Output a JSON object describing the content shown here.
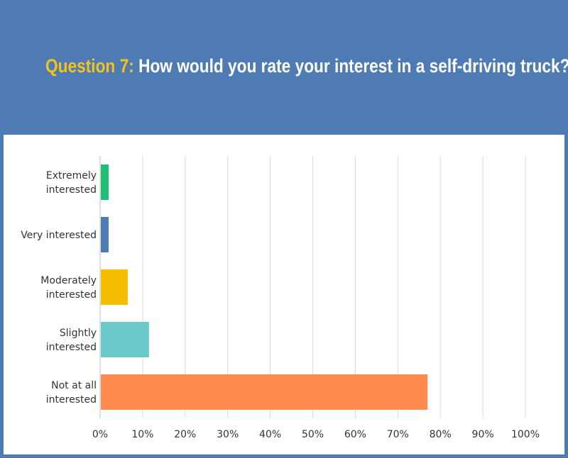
{
  "header": {
    "question_label": "Question 7:",
    "question_text": "How would you rate your interest in a self-driving truck?"
  },
  "colors": {
    "background": "#4f7bb5",
    "question_label": "#f5c11d",
    "grid": "#d9d9d9"
  },
  "chart_data": {
    "type": "bar",
    "orientation": "horizontal",
    "title": "How would you rate your interest in a self-driving truck?",
    "categories": [
      [
        "Extremely",
        "interested"
      ],
      [
        "Very interested"
      ],
      [
        "Moderately",
        "interested"
      ],
      [
        "Slightly",
        "interested"
      ],
      [
        "Not at all",
        "interested"
      ]
    ],
    "values": [
      2,
      2,
      6.5,
      11.5,
      77
    ],
    "colors": [
      "#1dbf73",
      "#4f7bb5",
      "#f5bd00",
      "#6ac8c8",
      "#ff8b4e"
    ],
    "xlim": [
      0,
      100
    ],
    "xticks": [
      "0%",
      "10%",
      "20%",
      "30%",
      "40%",
      "50%",
      "60%",
      "70%",
      "80%",
      "90%",
      "100%"
    ],
    "grid": true
  }
}
